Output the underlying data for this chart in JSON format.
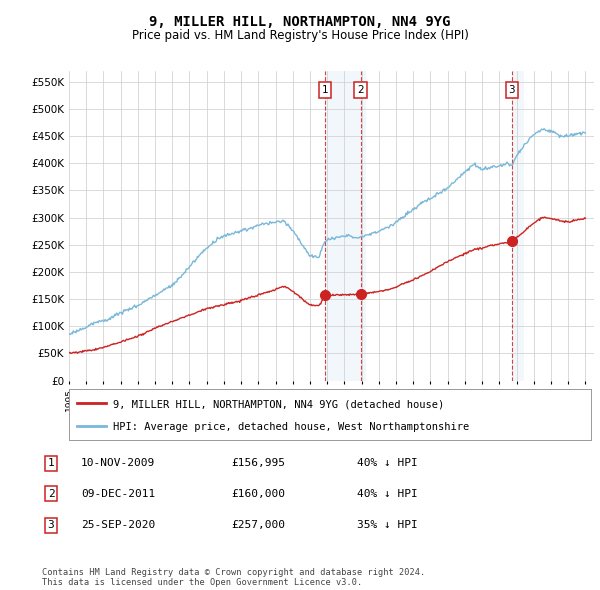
{
  "title": "9, MILLER HILL, NORTHAMPTON, NN4 9YG",
  "subtitle": "Price paid vs. HM Land Registry's House Price Index (HPI)",
  "ylabel_ticks": [
    "£0",
    "£50K",
    "£100K",
    "£150K",
    "£200K",
    "£250K",
    "£300K",
    "£350K",
    "£400K",
    "£450K",
    "£500K",
    "£550K"
  ],
  "ytick_values": [
    0,
    50000,
    100000,
    150000,
    200000,
    250000,
    300000,
    350000,
    400000,
    450000,
    500000,
    550000
  ],
  "ylim": [
    0,
    570000
  ],
  "hpi_color": "#7ab8d9",
  "price_color": "#cc2222",
  "transaction_color_fill": "#daeaf5",
  "background_color": "#ffffff",
  "grid_color": "#cccccc",
  "transactions": [
    {
      "label": "1",
      "date": "10-NOV-2009",
      "price": 156995,
      "pct": "40%",
      "x_year": 2009.86
    },
    {
      "label": "2",
      "date": "09-DEC-2011",
      "price": 160000,
      "pct": "40%",
      "x_year": 2011.94
    },
    {
      "label": "3",
      "date": "25-SEP-2020",
      "price": 257000,
      "pct": "35%",
      "x_year": 2020.73
    }
  ],
  "legend_entries": [
    "9, MILLER HILL, NORTHAMPTON, NN4 9YG (detached house)",
    "HPI: Average price, detached house, West Northamptonshire"
  ],
  "table_data": [
    [
      "1",
      "10-NOV-2009",
      "£156,995",
      "40% ↓ HPI"
    ],
    [
      "2",
      "09-DEC-2011",
      "£160,000",
      "40% ↓ HPI"
    ],
    [
      "3",
      "25-SEP-2020",
      "£257,000",
      "35% ↓ HPI"
    ]
  ],
  "footer": "Contains HM Land Registry data © Crown copyright and database right 2024.\nThis data is licensed under the Open Government Licence v3.0.",
  "xmin": 1995.0,
  "xmax": 2025.5,
  "xtick_years": [
    1995,
    1996,
    1997,
    1998,
    1999,
    2000,
    2001,
    2002,
    2003,
    2004,
    2005,
    2006,
    2007,
    2008,
    2009,
    2010,
    2011,
    2012,
    2013,
    2014,
    2015,
    2016,
    2017,
    2018,
    2019,
    2020,
    2021,
    2022,
    2023,
    2024,
    2025
  ]
}
